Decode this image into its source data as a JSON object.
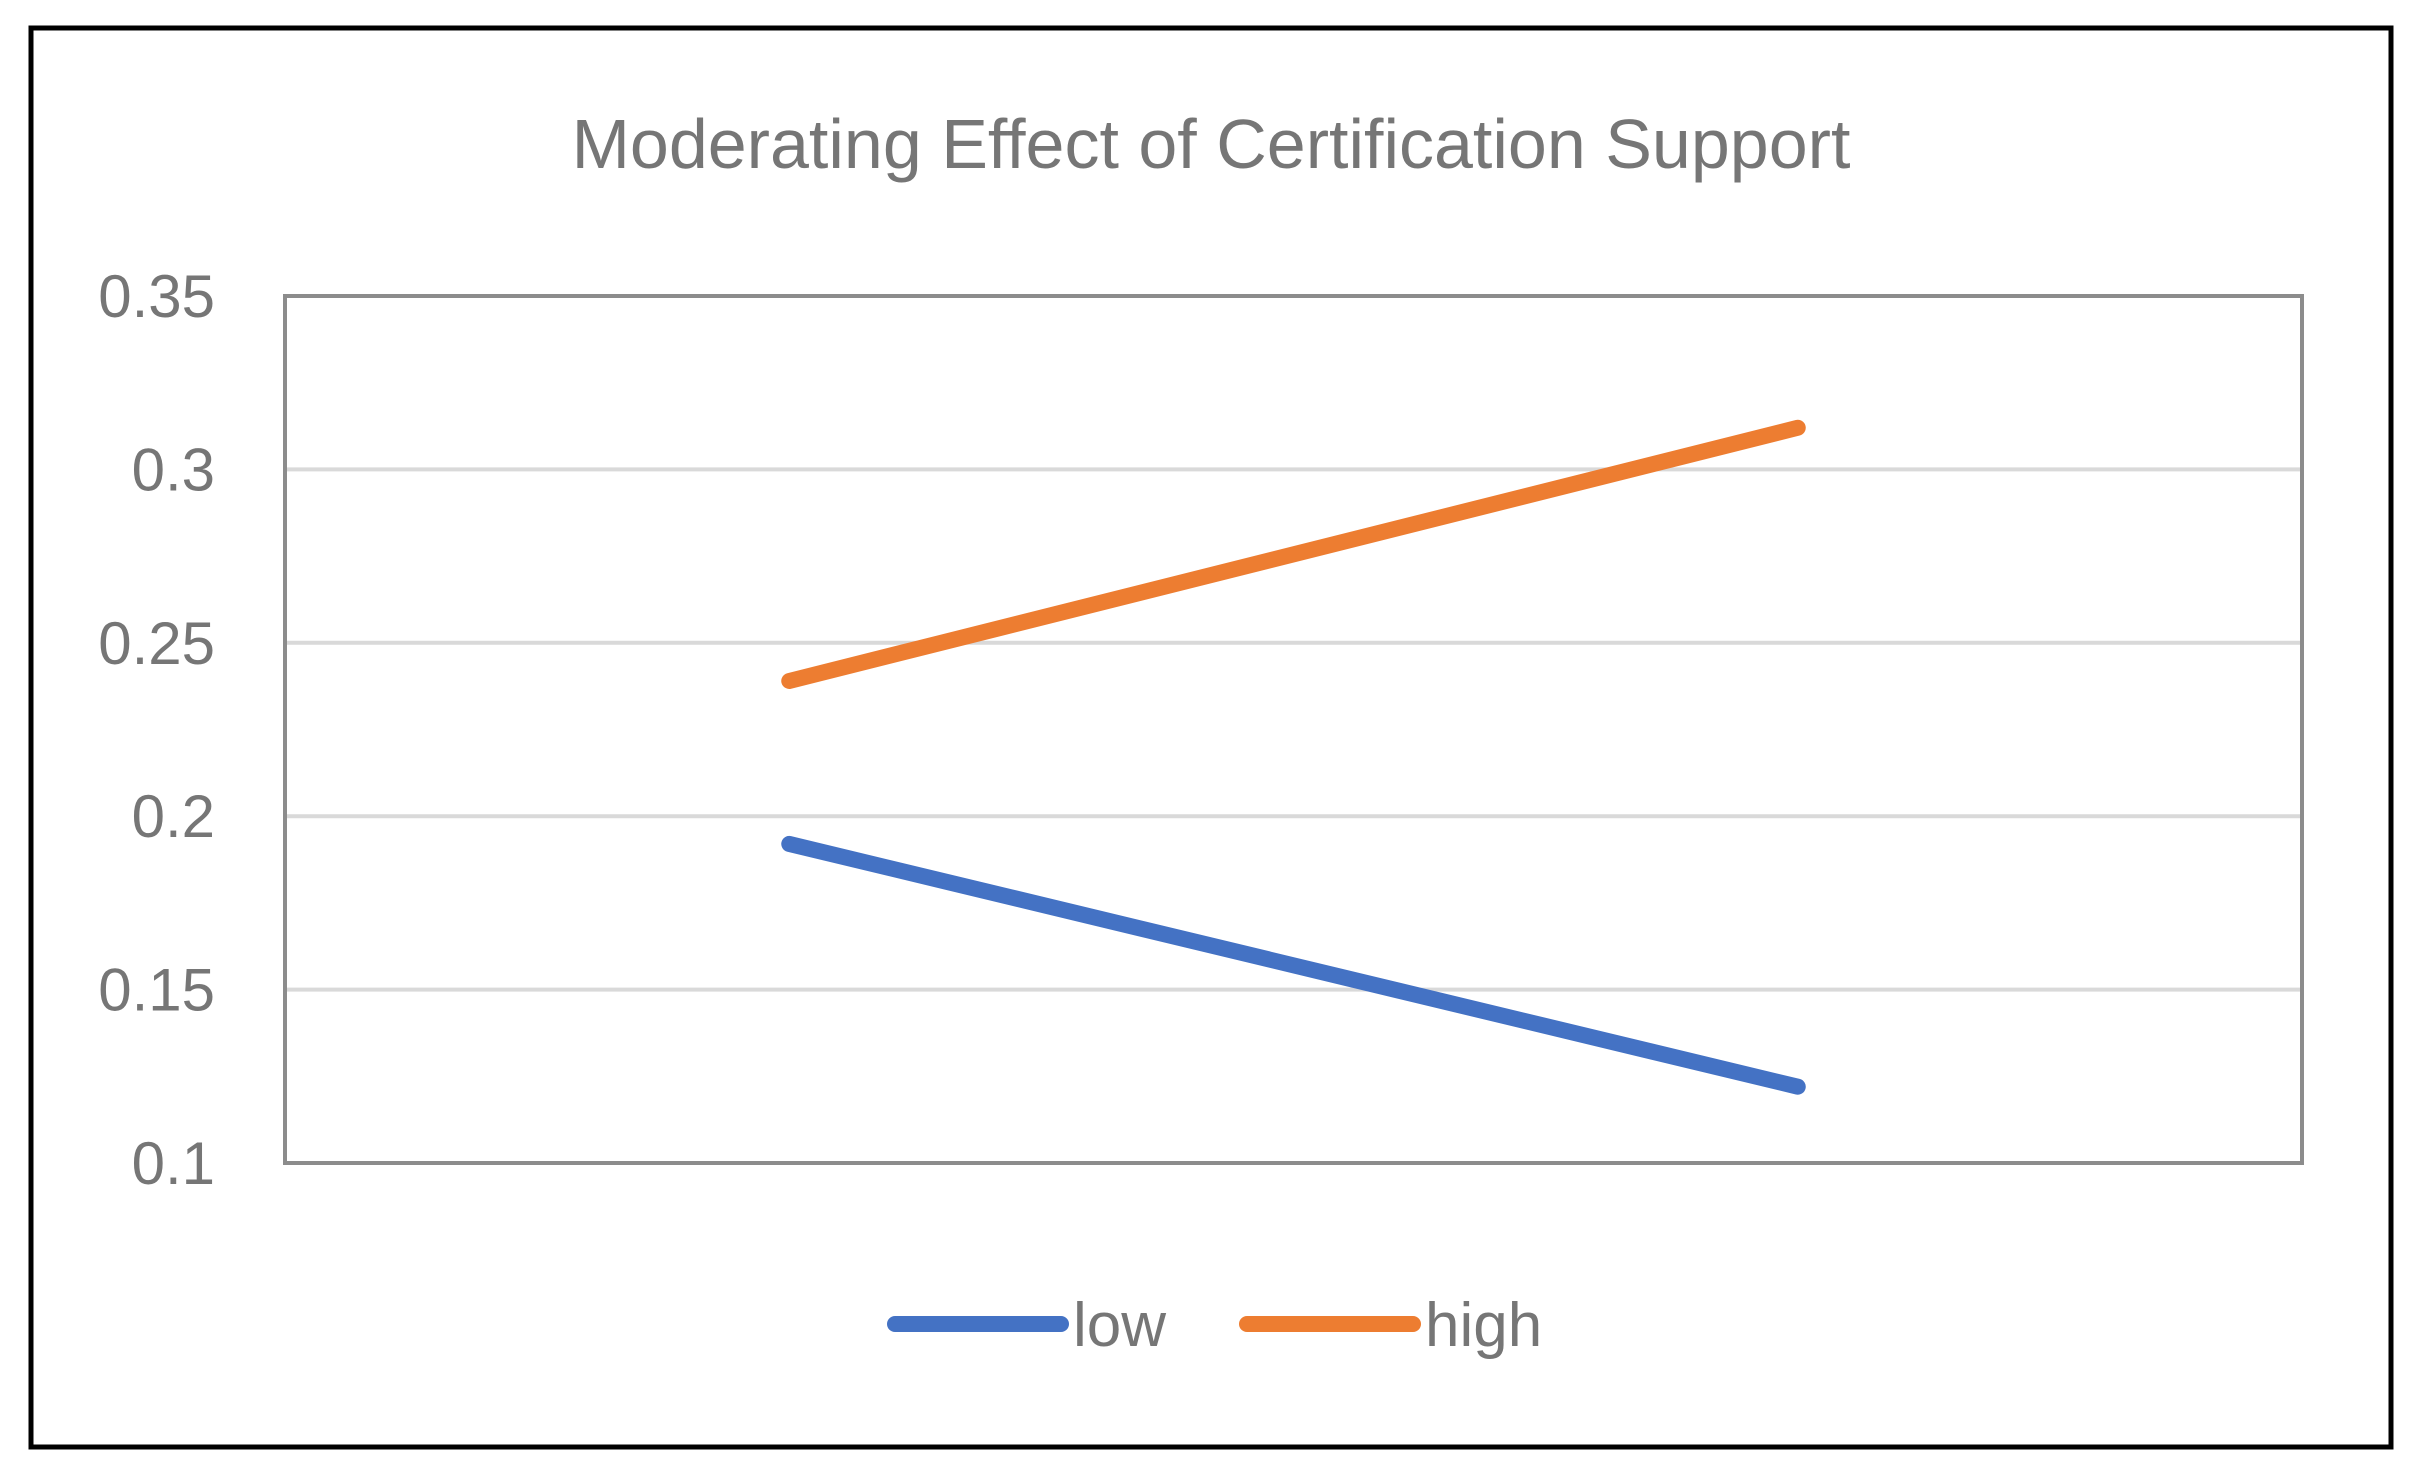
{
  "chart_data": {
    "type": "line",
    "title": "Moderating Effect of Certification Support",
    "xlabel": "",
    "ylabel": "",
    "categories": [
      "",
      ""
    ],
    "ylim": [
      0.1,
      0.35
    ],
    "yticks": [
      0.1,
      0.15,
      0.2,
      0.25,
      0.3,
      0.35
    ],
    "ytick_labels": [
      "0.1",
      "0.15",
      "0.2",
      "0.25",
      "0.3",
      "0.35"
    ],
    "grid": true,
    "legend_position": "bottom",
    "series": [
      {
        "name": "low",
        "values": [
          0.192,
          0.122
        ],
        "color": "#4472c4"
      },
      {
        "name": "high",
        "values": [
          0.239,
          0.312
        ],
        "color": "#ed7d31"
      }
    ]
  }
}
